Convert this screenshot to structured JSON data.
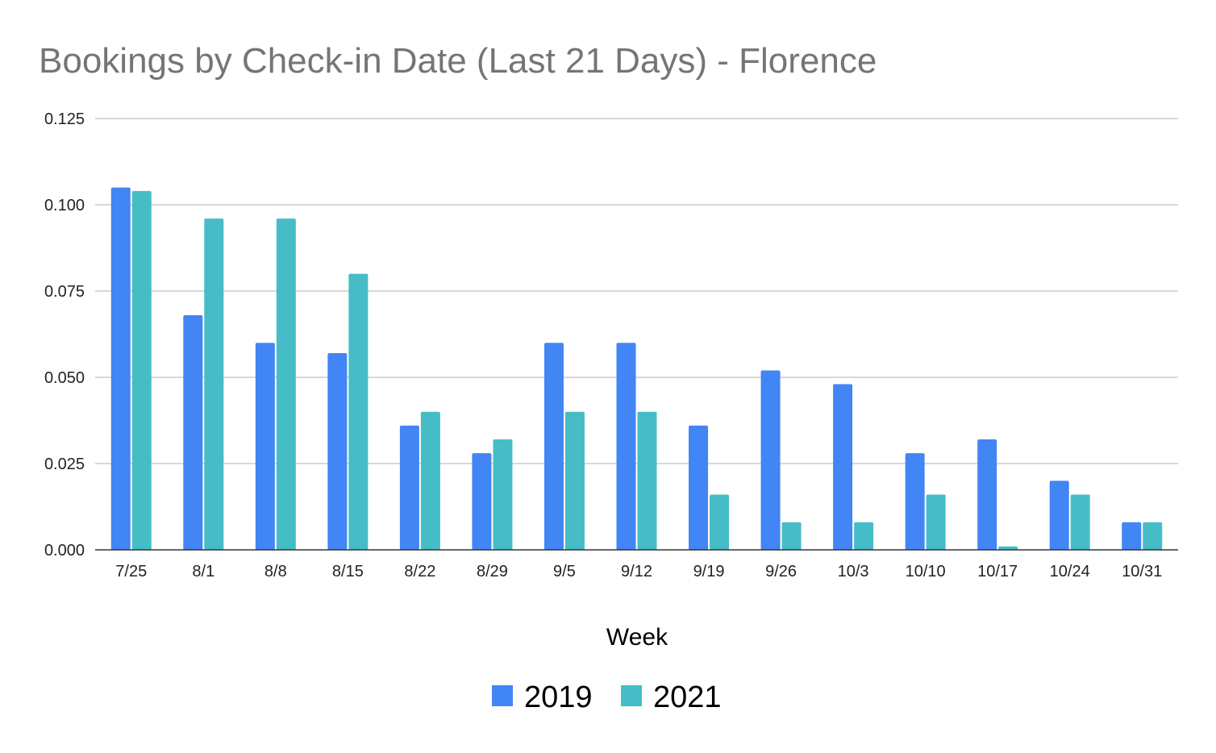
{
  "chart_data": {
    "type": "bar",
    "title": "Bookings by Check-in Date (Last 21 Days) -  Florence",
    "xlabel": "Week",
    "ylabel": "",
    "ylim": [
      0,
      0.125
    ],
    "yticks": [
      "0.000",
      "0.025",
      "0.050",
      "0.075",
      "0.100",
      "0.125"
    ],
    "grid": true,
    "legend_position": "bottom",
    "categories": [
      "7/25",
      "8/1",
      "8/8",
      "8/15",
      "8/22",
      "8/29",
      "9/5",
      "9/12",
      "9/19",
      "9/26",
      "10/3",
      "10/10",
      "10/17",
      "10/24",
      "10/31"
    ],
    "series": [
      {
        "name": "2019",
        "color": "#4285f4",
        "values": [
          0.105,
          0.068,
          0.06,
          0.057,
          0.036,
          0.028,
          0.06,
          0.06,
          0.036,
          0.052,
          0.048,
          0.028,
          0.032,
          0.02,
          0.008
        ]
      },
      {
        "name": "2021",
        "color": "#46bdc6",
        "values": [
          0.104,
          0.096,
          0.096,
          0.08,
          0.04,
          0.032,
          0.04,
          0.04,
          0.016,
          0.008,
          0.008,
          0.016,
          0.001,
          0.016,
          0.008
        ]
      }
    ]
  }
}
